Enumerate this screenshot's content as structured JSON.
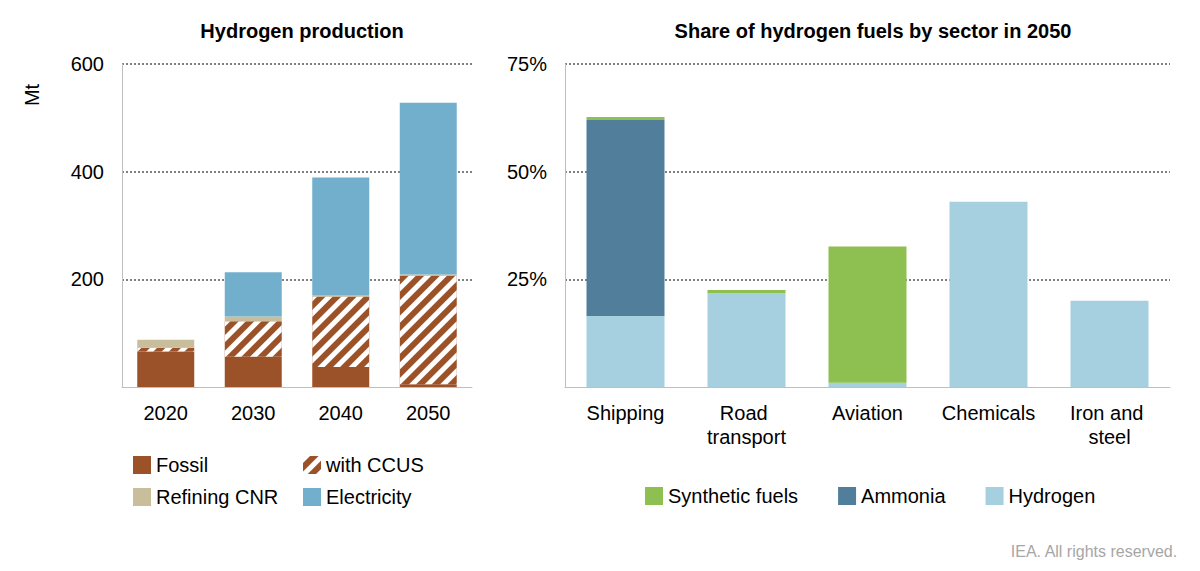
{
  "chart_data": [
    {
      "type": "bar",
      "title": "Hydrogen production",
      "ylabel": "Mt",
      "categories": [
        "2020",
        "2030",
        "2040",
        "2050"
      ],
      "series": [
        {
          "name": "Fossil",
          "color": "#9C5228",
          "values": [
            66,
            56,
            37,
            5
          ]
        },
        {
          "name": "with CCUS",
          "color": "#9C5228",
          "values": [
            7,
            66,
            131,
            202
          ]
        },
        {
          "name": "Refining CNR",
          "color": "#C9BE9C",
          "values": [
            15,
            9,
            3,
            2
          ]
        },
        {
          "name": "Electricity",
          "color": "#72AFCC",
          "values": [
            0,
            82,
            218,
            319
          ]
        }
      ],
      "ylim": [
        0,
        600
      ],
      "yticks": [
        200,
        400,
        600
      ],
      "stacked": true,
      "grid": true,
      "legend": "bottom"
    },
    {
      "type": "bar",
      "title": "Share of hydrogen fuels by sector in 2050",
      "categories": [
        "Shipping",
        "Road transport",
        "Aviation",
        "Chemicals",
        "Iron and steel"
      ],
      "series": [
        {
          "name": "Synthetic fuels",
          "color": "#8DC050",
          "values": [
            0.7,
            0.7,
            31.6,
            0,
            0
          ]
        },
        {
          "name": "Ammonia",
          "color": "#517F9B",
          "values": [
            45.5,
            0,
            0,
            0,
            0
          ]
        },
        {
          "name": "Hydrogen",
          "color": "#A6CFE0",
          "values": [
            16.5,
            21.8,
            1,
            43,
            20
          ]
        }
      ],
      "ylim": [
        0,
        75
      ],
      "yticks": [
        {
          "value": 25,
          "label": "25%"
        },
        {
          "value": 50,
          "label": "50%"
        },
        {
          "value": 75,
          "label": "75%"
        }
      ],
      "stacked": true,
      "grid": true,
      "legend": "bottom",
      "annotations": [
        "IEA. All rights reserved."
      ]
    }
  ]
}
